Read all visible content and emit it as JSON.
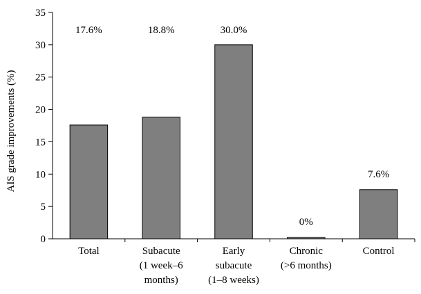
{
  "chart_data": {
    "type": "bar",
    "categories": [
      [
        "Total"
      ],
      [
        "Subacute",
        "(1 week–6",
        "months)"
      ],
      [
        "Early",
        "subacute",
        "(1–8 weeks)"
      ],
      [
        "Chronic",
        "(>6 months)"
      ],
      [
        "Control"
      ]
    ],
    "values": [
      17.6,
      18.8,
      30.0,
      0.2,
      7.6
    ],
    "data_labels": [
      "17.6%",
      "18.8%",
      "30.0%",
      "0%",
      "7.6%"
    ],
    "ylabel": "AIS grade improvements (%)",
    "xlabel": "",
    "ylim": [
      0,
      35
    ],
    "yticks": [
      0,
      5,
      10,
      15,
      20,
      25,
      30,
      35
    ],
    "grid": false,
    "bar_color": "#7f7f7f",
    "bar_edge_color": "#000000"
  }
}
